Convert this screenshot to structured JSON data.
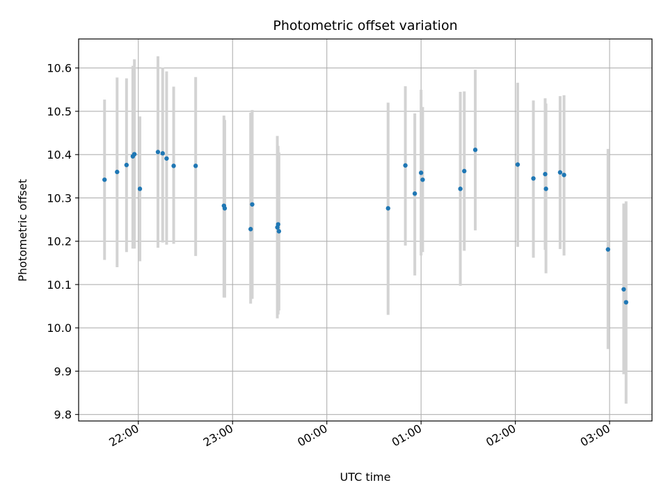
{
  "chart_data": {
    "type": "scatter",
    "title": "Photometric offset variation",
    "xlabel": "UTC time",
    "ylabel": "Photometric offset",
    "x_ticks": [
      "22:00",
      "23:00",
      "00:00",
      "01:00",
      "02:00",
      "03:00"
    ],
    "x_tick_values_min": [
      0,
      60,
      120,
      180,
      240,
      300
    ],
    "x_range_min": [
      -38,
      327
    ],
    "y_ticks": [
      "9.8",
      "9.9",
      "10.0",
      "10.1",
      "10.2",
      "10.3",
      "10.4",
      "10.5",
      "10.6"
    ],
    "ylim": [
      9.785,
      10.667
    ],
    "grid": true,
    "x_unit": "minutes after 22:00 UTC",
    "colors": {
      "points": "#1f77b4",
      "errorbars": "#d3d3d3",
      "grid": "#b0b0b0"
    },
    "points": [
      {
        "x": -21.5,
        "y": 10.342,
        "lo": 10.157,
        "hi": 10.527
      },
      {
        "x": -13.5,
        "y": 10.36,
        "lo": 10.14,
        "hi": 10.578
      },
      {
        "x": -7.5,
        "y": 10.376,
        "lo": 10.175,
        "hi": 10.576
      },
      {
        "x": -3.5,
        "y": 10.396,
        "lo": 10.183,
        "hi": 10.605
      },
      {
        "x": -2.5,
        "y": 10.401,
        "lo": 10.183,
        "hi": 10.62
      },
      {
        "x": 1.0,
        "y": 10.321,
        "lo": 10.154,
        "hi": 10.488
      },
      {
        "x": 12.5,
        "y": 10.406,
        "lo": 10.185,
        "hi": 10.627
      },
      {
        "x": 15.5,
        "y": 10.403,
        "lo": 10.197,
        "hi": 10.601
      },
      {
        "x": 18.0,
        "y": 10.391,
        "lo": 10.192,
        "hi": 10.592
      },
      {
        "x": 22.5,
        "y": 10.374,
        "lo": 10.194,
        "hi": 10.557
      },
      {
        "x": 36.5,
        "y": 10.374,
        "lo": 10.166,
        "hi": 10.579
      },
      {
        "x": 54.5,
        "y": 10.282,
        "lo": 10.07,
        "hi": 10.49
      },
      {
        "x": 55.0,
        "y": 10.276,
        "lo": 10.07,
        "hi": 10.48
      },
      {
        "x": 71.5,
        "y": 10.228,
        "lo": 10.056,
        "hi": 10.497
      },
      {
        "x": 72.5,
        "y": 10.285,
        "lo": 10.067,
        "hi": 10.503
      },
      {
        "x": 88.5,
        "y": 10.232,
        "lo": 10.022,
        "hi": 10.443
      },
      {
        "x": 89.0,
        "y": 10.239,
        "lo": 10.031,
        "hi": 10.42
      },
      {
        "x": 89.5,
        "y": 10.223,
        "lo": 10.04,
        "hi": 10.405
      },
      {
        "x": 159.0,
        "y": 10.276,
        "lo": 10.03,
        "hi": 10.52
      },
      {
        "x": 170.0,
        "y": 10.375,
        "lo": 10.19,
        "hi": 10.558
      },
      {
        "x": 176.0,
        "y": 10.31,
        "lo": 10.121,
        "hi": 10.495
      },
      {
        "x": 180.0,
        "y": 10.358,
        "lo": 10.167,
        "hi": 10.55
      },
      {
        "x": 181.0,
        "y": 10.342,
        "lo": 10.175,
        "hi": 10.51
      },
      {
        "x": 205.0,
        "y": 10.321,
        "lo": 10.097,
        "hi": 10.545
      },
      {
        "x": 207.5,
        "y": 10.362,
        "lo": 10.178,
        "hi": 10.546
      },
      {
        "x": 214.5,
        "y": 10.411,
        "lo": 10.225,
        "hi": 10.596
      },
      {
        "x": 241.5,
        "y": 10.377,
        "lo": 10.187,
        "hi": 10.566
      },
      {
        "x": 251.5,
        "y": 10.345,
        "lo": 10.162,
        "hi": 10.525
      },
      {
        "x": 259.0,
        "y": 10.355,
        "lo": 10.18,
        "hi": 10.53
      },
      {
        "x": 259.5,
        "y": 10.321,
        "lo": 10.126,
        "hi": 10.518
      },
      {
        "x": 268.5,
        "y": 10.359,
        "lo": 10.182,
        "hi": 10.535
      },
      {
        "x": 271.0,
        "y": 10.353,
        "lo": 10.167,
        "hi": 10.537
      },
      {
        "x": 299.0,
        "y": 10.181,
        "lo": 9.951,
        "hi": 10.413
      },
      {
        "x": 309.0,
        "y": 10.089,
        "lo": 9.893,
        "hi": 10.287
      },
      {
        "x": 310.5,
        "y": 10.059,
        "lo": 9.825,
        "hi": 10.292
      }
    ]
  }
}
